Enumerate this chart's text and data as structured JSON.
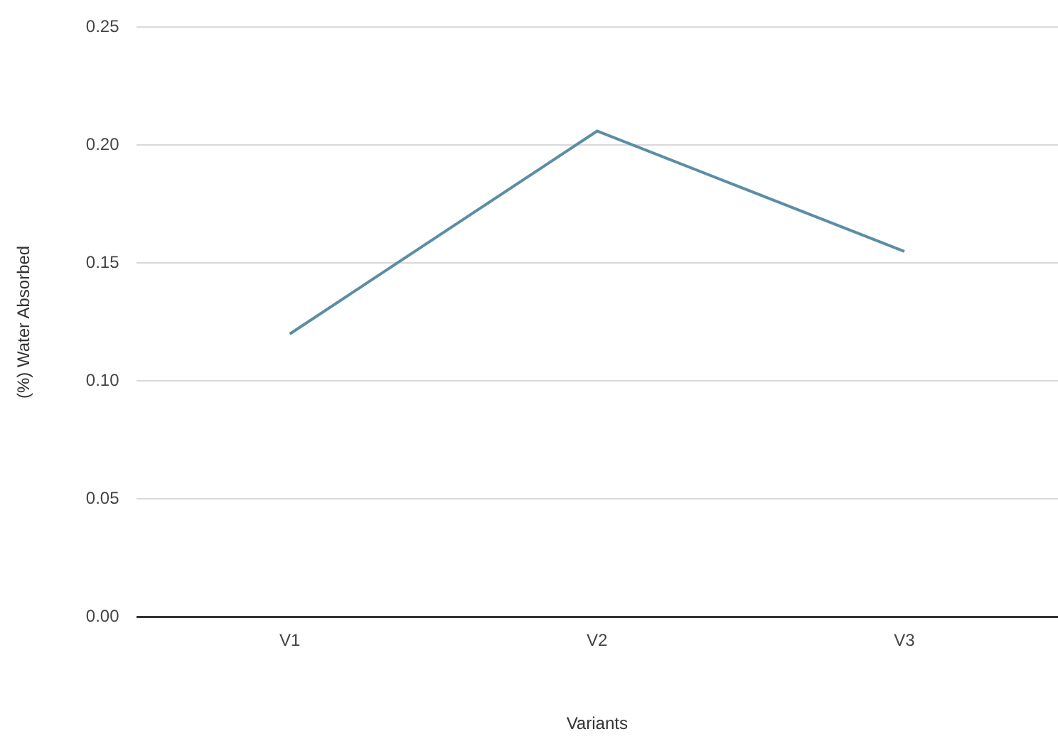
{
  "chart_data": {
    "type": "line",
    "xlabel": "Variants",
    "ylabel": "(%) Water Absorbed",
    "categories": [
      "V1",
      "V2",
      "V3"
    ],
    "series": [
      {
        "color": "#5b8ea6",
        "values": [
          0.12,
          0.206,
          0.155
        ]
      }
    ],
    "ylim": [
      0,
      0.25
    ],
    "yticks": [
      {
        "value": 0,
        "label": "0.00"
      },
      {
        "value": 0.05,
        "label": "0.05"
      },
      {
        "value": 0.1,
        "label": "0.10"
      },
      {
        "value": 0.15,
        "label": "0.15"
      },
      {
        "value": 0.2,
        "label": "0.20"
      },
      {
        "value": 0.25,
        "label": "0.25"
      }
    ],
    "grid": "y",
    "legend": false,
    "marker": "none",
    "line_style": "solid"
  }
}
